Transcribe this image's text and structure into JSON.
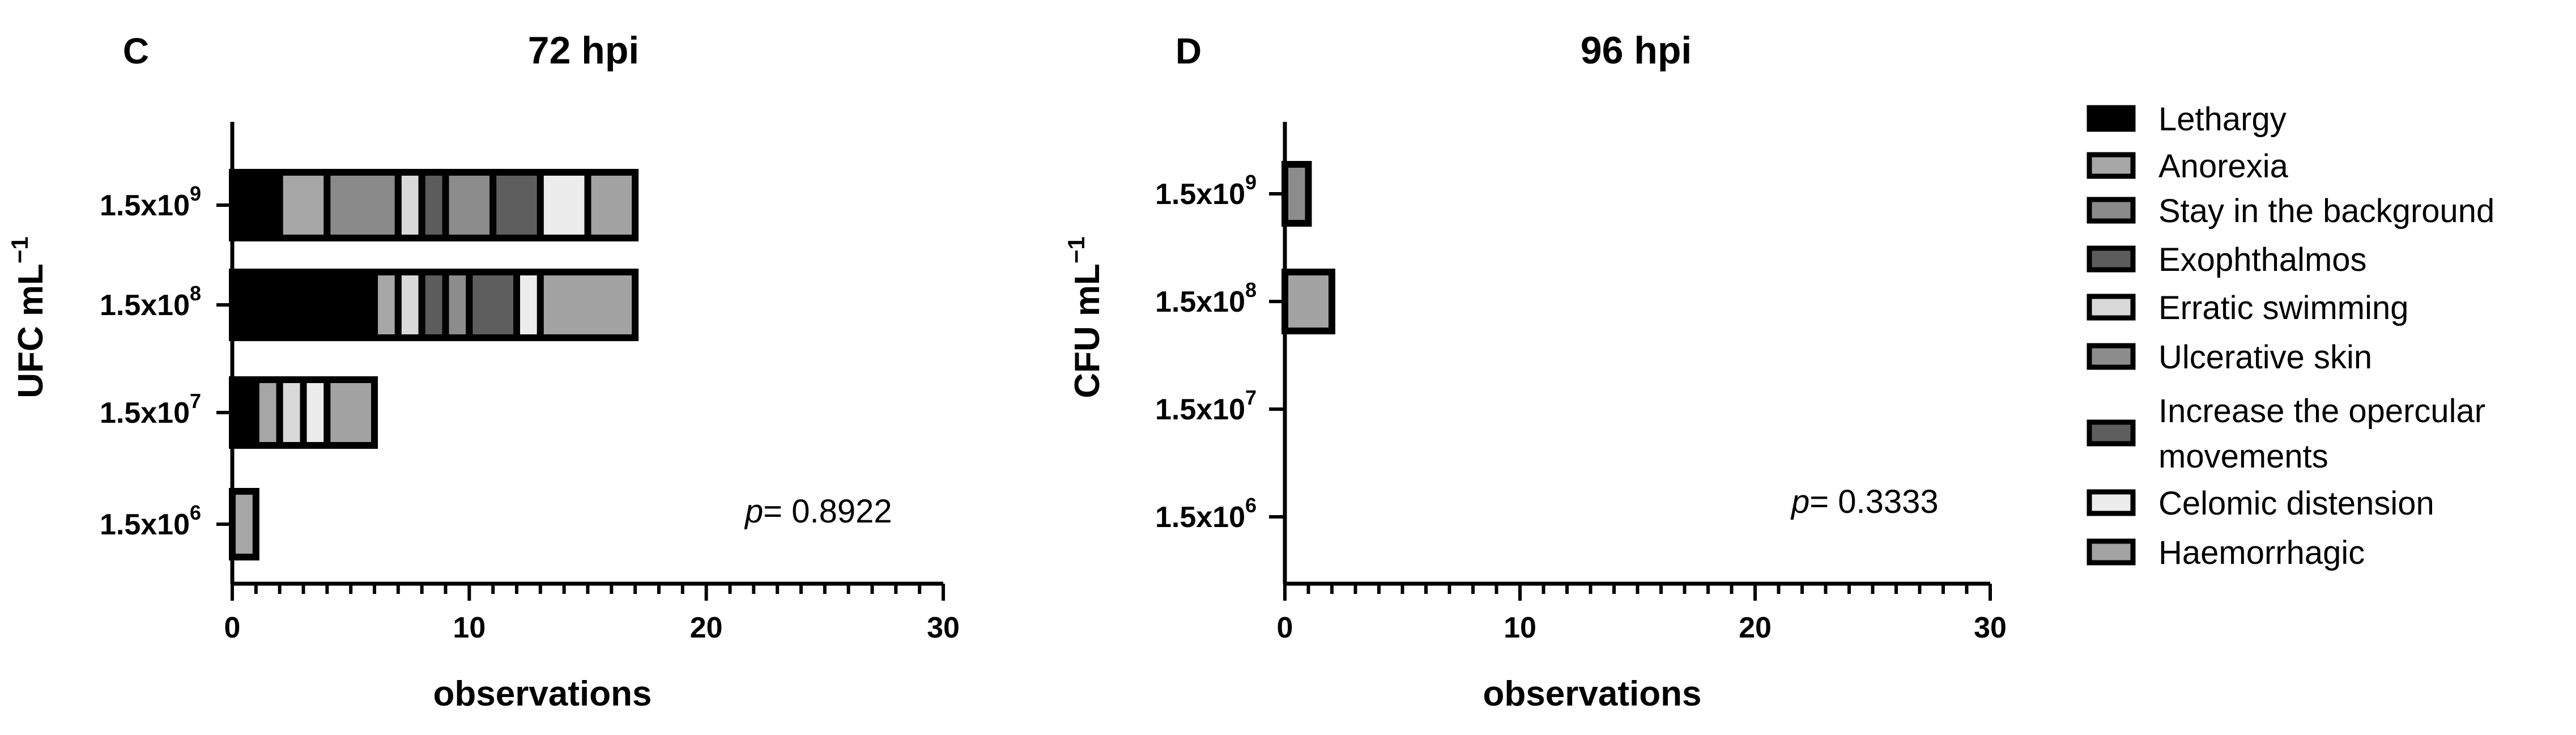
{
  "categories_legend": [
    {
      "name": "Lethargy",
      "color": "#000000"
    },
    {
      "name": "Anorexia",
      "color": "#a6a6a6"
    },
    {
      "name": "Stay in the background",
      "color": "#8a8a8a"
    },
    {
      "name": "Exophthalmos",
      "color": "#5c5c5c"
    },
    {
      "name": "Erratic swimming",
      "color": "#d9d9d9"
    },
    {
      "name": "Ulcerative skin",
      "color": "#8c8c8c"
    },
    {
      "name": "Increase the opercular\nmovements",
      "color": "#5e5e5e"
    },
    {
      "name": "Celomic distension",
      "color": "#ececec"
    },
    {
      "name": "Haemorrhagic",
      "color": "#a3a3a3"
    }
  ],
  "chart_data": [
    {
      "type": "bar",
      "orientation": "horizontal-stacked",
      "panel_label": "C",
      "title": "72 hpi",
      "xlabel": "observations",
      "ylabel_main": "UFC mL",
      "ylabel_sup": "−1",
      "xlim": [
        0,
        30
      ],
      "xticks": [
        "0",
        "10",
        "20",
        "30"
      ],
      "categories": [
        {
          "base": "1.5x10",
          "exp": "9"
        },
        {
          "base": "1.5x10",
          "exp": "8"
        },
        {
          "base": "1.5x10",
          "exp": "7"
        },
        {
          "base": "1.5x10",
          "exp": "6"
        }
      ],
      "stacks": [
        [
          {
            "sign": "Lethargy",
            "value": 2
          },
          {
            "sign": "Anorexia",
            "value": 2
          },
          {
            "sign": "Stay in the background",
            "value": 3
          },
          {
            "sign": "Erratic swimming",
            "value": 1
          },
          {
            "sign": "Exophthalmos",
            "value": 1
          },
          {
            "sign": "Ulcerative skin",
            "value": 2
          },
          {
            "sign": "Increase the opercular movements",
            "value": 2
          },
          {
            "sign": "Celomic distension",
            "value": 2
          },
          {
            "sign": "Haemorrhagic",
            "value": 2
          }
        ],
        [
          {
            "sign": "Lethargy",
            "value": 6
          },
          {
            "sign": "Anorexia",
            "value": 1
          },
          {
            "sign": "Erratic swimming",
            "value": 1
          },
          {
            "sign": "Exophthalmos",
            "value": 1
          },
          {
            "sign": "Ulcerative skin",
            "value": 1
          },
          {
            "sign": "Increase the opercular movements",
            "value": 2
          },
          {
            "sign": "Celomic distension",
            "value": 1
          },
          {
            "sign": "Haemorrhagic",
            "value": 4
          }
        ],
        [
          {
            "sign": "Lethargy",
            "value": 1
          },
          {
            "sign": "Anorexia",
            "value": 1
          },
          {
            "sign": "Erratic swimming",
            "value": 1
          },
          {
            "sign": "Celomic distension",
            "value": 1
          },
          {
            "sign": "Haemorrhagic",
            "value": 2
          }
        ],
        [
          {
            "sign": "Anorexia",
            "value": 1
          }
        ]
      ],
      "annotation": {
        "italic": "p",
        "text": "= 0.8922"
      },
      "grid": false
    },
    {
      "type": "bar",
      "orientation": "horizontal-stacked",
      "panel_label": "D",
      "title": "96 hpi",
      "xlabel": "observations",
      "ylabel_main": "CFU mL",
      "ylabel_sup": "−1",
      "xlim": [
        0,
        30
      ],
      "xticks": [
        "0",
        "10",
        "20",
        "30"
      ],
      "categories": [
        {
          "base": "1.5x10",
          "exp": "9"
        },
        {
          "base": "1.5x10",
          "exp": "8"
        },
        {
          "base": "1.5x10",
          "exp": "7"
        },
        {
          "base": "1.5x10",
          "exp": "6"
        }
      ],
      "stacks": [
        [
          {
            "sign": "Ulcerative skin",
            "value": 1
          }
        ],
        [
          {
            "sign": "Haemorrhagic",
            "value": 2
          }
        ],
        [],
        []
      ],
      "annotation": {
        "italic": "p",
        "text": "= 0.3333"
      },
      "grid": false
    }
  ]
}
